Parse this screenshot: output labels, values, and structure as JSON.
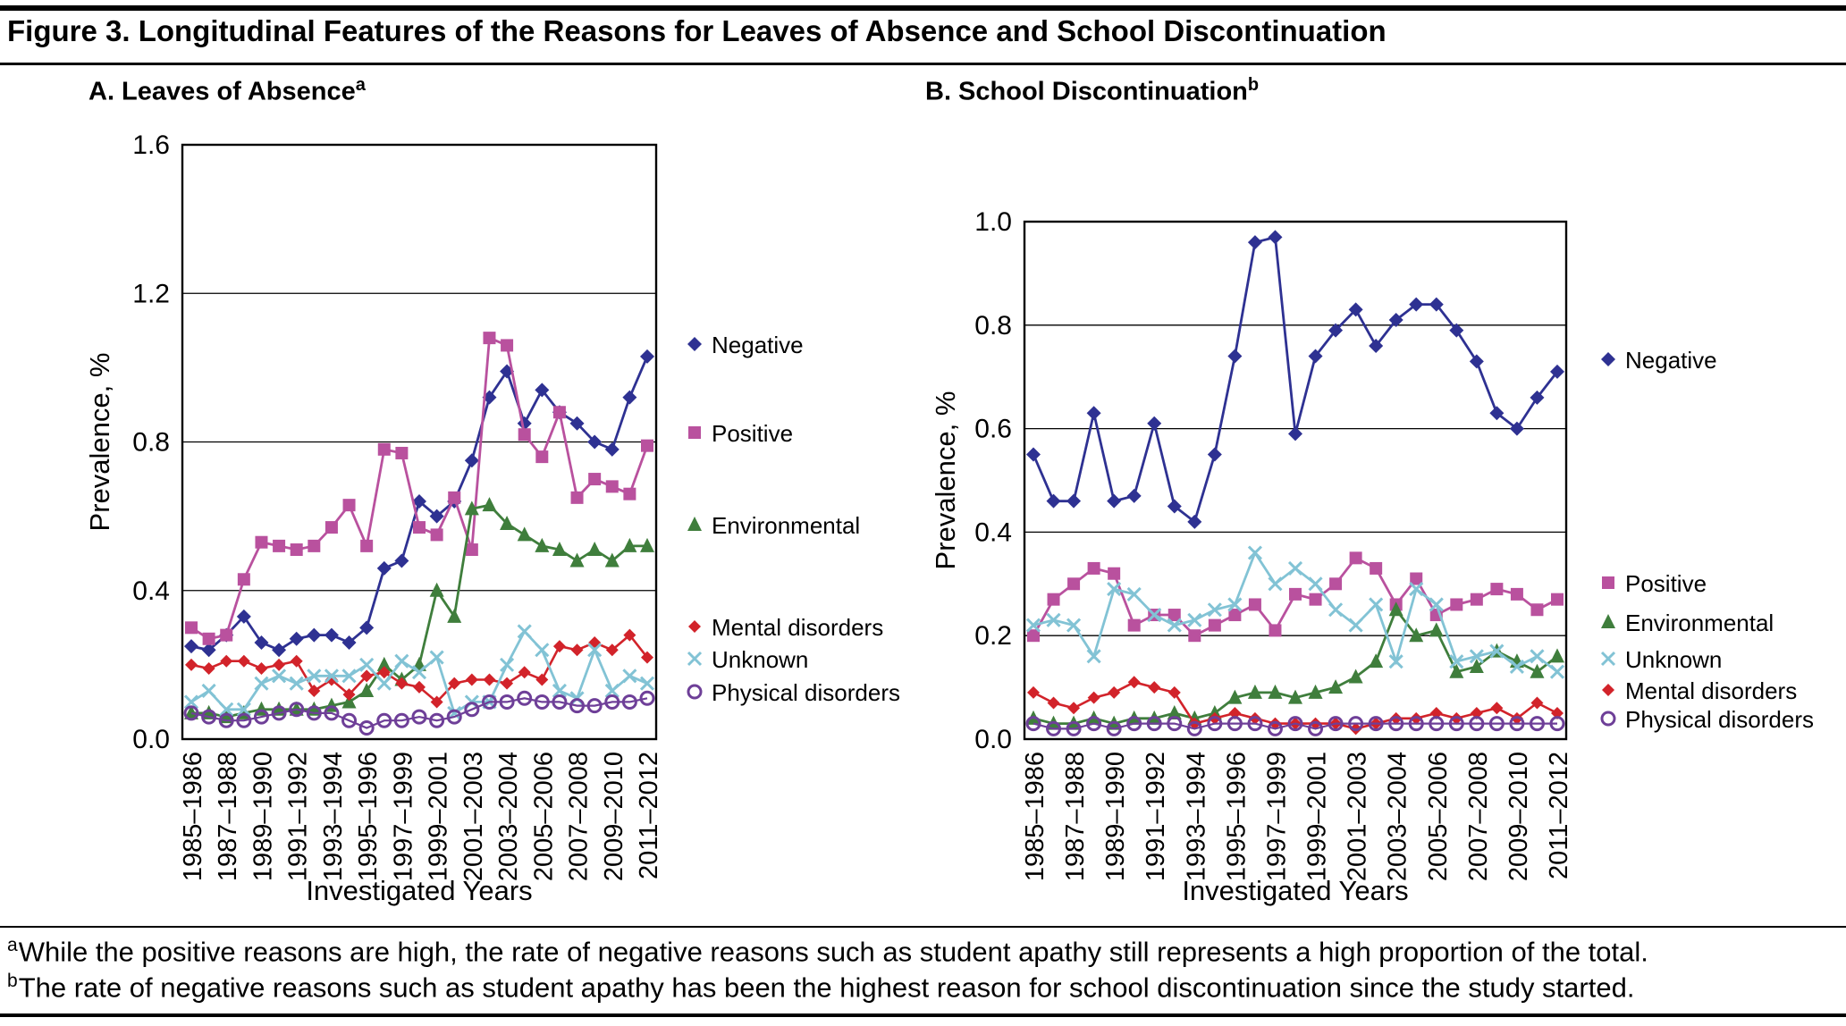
{
  "figure": {
    "title": "Figure 3. Longitudinal Features of the Reasons for Leaves of Absence and School Discontinuation",
    "footnotes": [
      {
        "sup": "a",
        "text": "While the positive reasons are high, the rate of negative reasons such as student apathy still represents a high proportion of the total."
      },
      {
        "sup": "b",
        "text": "The rate of negative reasons such as student apathy has been the highest reason for school discontinuation since the study started."
      }
    ]
  },
  "chart_data": [
    {
      "id": "panelA",
      "type": "line",
      "title": "A. Leaves of Absence",
      "title_sup": "a",
      "xlabel": "Investigated Years",
      "ylabel": "Prevalence, %",
      "ylim": [
        0,
        1.6
      ],
      "yticks": [
        0.0,
        0.4,
        0.8,
        1.2,
        1.6
      ],
      "grid": true,
      "legend_position": "right",
      "x_tick_labels": [
        "1985–1986",
        "1987–1988",
        "1989–1990",
        "1991–1992",
        "1993–1994",
        "1995–1996",
        "1997–1999",
        "1999–2001",
        "2001–2003",
        "2003–2004",
        "2005–2006",
        "2007–2008",
        "2009–2010",
        "2011–2012"
      ],
      "series": [
        {
          "name": "Negative",
          "color": "#2e3192",
          "marker": "diamond",
          "msize": 8,
          "line_width": 2.8,
          "values": [
            0.25,
            0.24,
            0.28,
            0.33,
            0.26,
            0.24,
            0.27,
            0.28,
            0.28,
            0.26,
            0.3,
            0.46,
            0.48,
            0.64,
            0.6,
            0.64,
            0.75,
            0.92,
            0.99,
            0.85,
            0.94,
            0.88,
            0.85,
            0.8,
            0.78,
            0.92,
            1.03
          ]
        },
        {
          "name": "Positive",
          "color": "#b9519e",
          "marker": "square",
          "msize": 8,
          "line_width": 2.8,
          "values": [
            0.3,
            0.27,
            0.28,
            0.43,
            0.53,
            0.52,
            0.51,
            0.52,
            0.57,
            0.63,
            0.52,
            0.78,
            0.77,
            0.57,
            0.55,
            0.65,
            0.51,
            1.08,
            1.06,
            0.82,
            0.76,
            0.88,
            0.65,
            0.7,
            0.68,
            0.66,
            0.79
          ]
        },
        {
          "name": "Environmental",
          "color": "#3f7e3c",
          "marker": "triangle",
          "msize": 9,
          "line_width": 2.8,
          "values": [
            0.07,
            0.07,
            0.06,
            0.07,
            0.08,
            0.08,
            0.08,
            0.08,
            0.09,
            0.1,
            0.13,
            0.2,
            0.16,
            0.2,
            0.4,
            0.33,
            0.62,
            0.63,
            0.58,
            0.55,
            0.52,
            0.51,
            0.48,
            0.51,
            0.48,
            0.52,
            0.52
          ]
        },
        {
          "name": "Mental disorders",
          "color": "#d2232a",
          "marker": "diamond",
          "msize": 7,
          "line_width": 2.6,
          "values": [
            0.2,
            0.19,
            0.21,
            0.21,
            0.19,
            0.2,
            0.21,
            0.13,
            0.16,
            0.12,
            0.17,
            0.18,
            0.15,
            0.14,
            0.1,
            0.15,
            0.16,
            0.16,
            0.15,
            0.18,
            0.16,
            0.25,
            0.24,
            0.26,
            0.24,
            0.28,
            0.22
          ]
        },
        {
          "name": "Unknown",
          "color": "#82c3d5",
          "marker": "x",
          "msize": 8,
          "line_width": 2.8,
          "values": [
            0.1,
            0.13,
            0.08,
            0.08,
            0.15,
            0.17,
            0.15,
            0.17,
            0.17,
            0.17,
            0.2,
            0.15,
            0.21,
            0.18,
            0.22,
            0.07,
            0.1,
            0.1,
            0.2,
            0.29,
            0.24,
            0.13,
            0.11,
            0.24,
            0.13,
            0.17,
            0.15
          ]
        },
        {
          "name": "Physical disorders",
          "color": "#6e3f98",
          "marker": "circle-open",
          "msize": 8,
          "line_width": 2.2,
          "values": [
            0.07,
            0.06,
            0.05,
            0.05,
            0.06,
            0.07,
            0.08,
            0.07,
            0.07,
            0.05,
            0.03,
            0.05,
            0.05,
            0.06,
            0.05,
            0.06,
            0.08,
            0.1,
            0.1,
            0.11,
            0.1,
            0.1,
            0.09,
            0.09,
            0.1,
            0.1,
            0.11
          ]
        }
      ]
    },
    {
      "id": "panelB",
      "type": "line",
      "title": "B. School Discontinuation",
      "title_sup": "b",
      "xlabel": "Investigated Years",
      "ylabel": "Prevalence, %",
      "ylim": [
        0,
        1.0
      ],
      "yticks": [
        0.0,
        0.2,
        0.4,
        0.6,
        0.8,
        1.0
      ],
      "grid": true,
      "legend_position": "right",
      "x_tick_labels": [
        "1985–1986",
        "1987–1988",
        "1989–1990",
        "1991–1992",
        "1993–1994",
        "1995–1996",
        "1997–1999",
        "1999–2001",
        "2001–2003",
        "2003–2004",
        "2005–2006",
        "2007–2008",
        "2009–2010",
        "2011–2012"
      ],
      "series": [
        {
          "name": "Negative",
          "color": "#2e3192",
          "marker": "diamond",
          "msize": 8,
          "line_width": 2.8,
          "values": [
            0.55,
            0.46,
            0.46,
            0.63,
            0.46,
            0.47,
            0.61,
            0.45,
            0.42,
            0.55,
            0.74,
            0.96,
            0.97,
            0.59,
            0.74,
            0.79,
            0.83,
            0.76,
            0.81,
            0.84,
            0.84,
            0.79,
            0.73,
            0.63,
            0.6,
            0.66,
            0.71
          ]
        },
        {
          "name": "Positive",
          "color": "#b9519e",
          "marker": "square",
          "msize": 8,
          "line_width": 2.8,
          "values": [
            0.2,
            0.27,
            0.3,
            0.33,
            0.32,
            0.22,
            0.24,
            0.24,
            0.2,
            0.22,
            0.24,
            0.26,
            0.21,
            0.28,
            0.27,
            0.3,
            0.35,
            0.33,
            0.26,
            0.31,
            0.24,
            0.26,
            0.27,
            0.29,
            0.28,
            0.25,
            0.27
          ]
        },
        {
          "name": "Environmental",
          "color": "#3f7e3c",
          "marker": "triangle",
          "msize": 9,
          "line_width": 2.8,
          "values": [
            0.04,
            0.03,
            0.03,
            0.04,
            0.03,
            0.04,
            0.04,
            0.05,
            0.04,
            0.05,
            0.08,
            0.09,
            0.09,
            0.08,
            0.09,
            0.1,
            0.12,
            0.15,
            0.25,
            0.2,
            0.21,
            0.13,
            0.14,
            0.17,
            0.15,
            0.13,
            0.16
          ]
        },
        {
          "name": "Unknown",
          "color": "#82c3d5",
          "marker": "x",
          "msize": 8,
          "line_width": 2.8,
          "values": [
            0.22,
            0.23,
            0.22,
            0.16,
            0.29,
            0.28,
            0.24,
            0.22,
            0.23,
            0.25,
            0.26,
            0.36,
            0.3,
            0.33,
            0.3,
            0.25,
            0.22,
            0.26,
            0.15,
            0.29,
            0.26,
            0.15,
            0.16,
            0.17,
            0.14,
            0.16,
            0.13
          ]
        },
        {
          "name": "Mental disorders",
          "color": "#d2232a",
          "marker": "diamond",
          "msize": 7,
          "line_width": 2.6,
          "values": [
            0.09,
            0.07,
            0.06,
            0.08,
            0.09,
            0.11,
            0.1,
            0.09,
            0.03,
            0.04,
            0.05,
            0.04,
            0.03,
            0.03,
            0.03,
            0.03,
            0.02,
            0.03,
            0.04,
            0.04,
            0.05,
            0.04,
            0.05,
            0.06,
            0.04,
            0.07,
            0.05
          ]
        },
        {
          "name": "Physical disorders",
          "color": "#6e3f98",
          "marker": "circle-open",
          "msize": 8,
          "line_width": 2.2,
          "values": [
            0.03,
            0.02,
            0.02,
            0.03,
            0.02,
            0.03,
            0.03,
            0.03,
            0.02,
            0.03,
            0.03,
            0.03,
            0.02,
            0.03,
            0.02,
            0.03,
            0.03,
            0.03,
            0.03,
            0.03,
            0.03,
            0.03,
            0.03,
            0.03,
            0.03,
            0.03,
            0.03
          ]
        }
      ]
    }
  ]
}
